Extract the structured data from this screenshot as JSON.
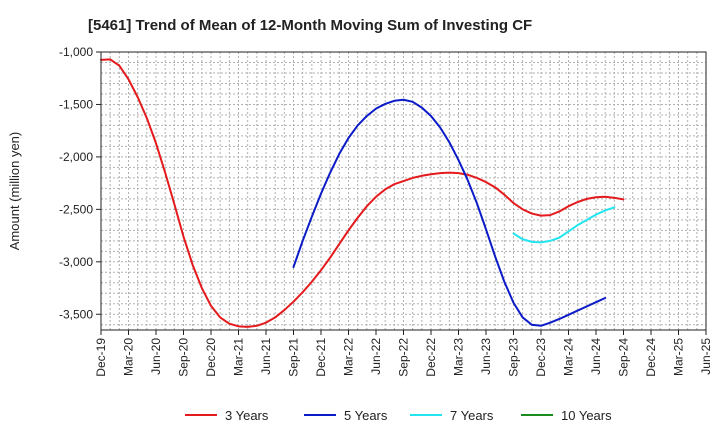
{
  "chart_data": {
    "type": "line",
    "title": "[5461]  Trend of Mean of 12-Month Moving Sum of Investing CF",
    "xlabel": "",
    "ylabel": "Amount (million yen)",
    "ylim": [
      -3650,
      -1000
    ],
    "yticks": [
      -1000,
      -1500,
      -2000,
      -2500,
      -3000,
      -3500
    ],
    "ytick_labels": [
      "-1,000",
      "-1,500",
      "-2,000",
      "-2,500",
      "-3,000",
      "-3,500"
    ],
    "xlim": [
      0,
      66
    ],
    "xticks": [
      0,
      3,
      6,
      9,
      12,
      15,
      18,
      21,
      24,
      27,
      30,
      33,
      36,
      39,
      42,
      45,
      48,
      51,
      54,
      57,
      60,
      63,
      66
    ],
    "xtick_labels": [
      "Dec-19",
      "Mar-20",
      "Jun-20",
      "Sep-20",
      "Dec-20",
      "Mar-21",
      "Jun-21",
      "Sep-21",
      "Dec-21",
      "Mar-22",
      "Jun-22",
      "Sep-22",
      "Dec-22",
      "Mar-23",
      "Jun-23",
      "Sep-23",
      "Dec-23",
      "Mar-24",
      "Jun-24",
      "Sep-24",
      "Dec-24",
      "Mar-25",
      "Jun-25"
    ],
    "grid": true,
    "legend": "bottom",
    "series": [
      {
        "name": "3 Years",
        "color": "#e41a1c",
        "points": [
          [
            0,
            -1075
          ],
          [
            1,
            -1070
          ],
          [
            2,
            -1130
          ],
          [
            3,
            -1260
          ],
          [
            4,
            -1430
          ],
          [
            5,
            -1630
          ],
          [
            6,
            -1870
          ],
          [
            7,
            -2150
          ],
          [
            8,
            -2450
          ],
          [
            9,
            -2760
          ],
          [
            10,
            -3030
          ],
          [
            11,
            -3250
          ],
          [
            12,
            -3420
          ],
          [
            13,
            -3530
          ],
          [
            14,
            -3590
          ],
          [
            15,
            -3615
          ],
          [
            16,
            -3620
          ],
          [
            17,
            -3610
          ],
          [
            18,
            -3580
          ],
          [
            19,
            -3530
          ],
          [
            20,
            -3460
          ],
          [
            21,
            -3380
          ],
          [
            22,
            -3290
          ],
          [
            23,
            -3190
          ],
          [
            24,
            -3080
          ],
          [
            25,
            -2960
          ],
          [
            26,
            -2830
          ],
          [
            27,
            -2700
          ],
          [
            28,
            -2580
          ],
          [
            29,
            -2470
          ],
          [
            30,
            -2380
          ],
          [
            31,
            -2310
          ],
          [
            32,
            -2260
          ],
          [
            33,
            -2230
          ],
          [
            34,
            -2200
          ],
          [
            35,
            -2180
          ],
          [
            36,
            -2165
          ],
          [
            37,
            -2155
          ],
          [
            38,
            -2150
          ],
          [
            39,
            -2155
          ],
          [
            40,
            -2170
          ],
          [
            41,
            -2200
          ],
          [
            42,
            -2240
          ],
          [
            43,
            -2290
          ],
          [
            44,
            -2360
          ],
          [
            45,
            -2440
          ],
          [
            46,
            -2500
          ],
          [
            47,
            -2540
          ],
          [
            48,
            -2560
          ],
          [
            49,
            -2555
          ],
          [
            50,
            -2520
          ],
          [
            51,
            -2470
          ],
          [
            52,
            -2430
          ],
          [
            53,
            -2400
          ],
          [
            54,
            -2385
          ],
          [
            55,
            -2380
          ],
          [
            56,
            -2390
          ],
          [
            57,
            -2405
          ]
        ]
      },
      {
        "name": "5 Years",
        "color": "#0c1bc8",
        "points": [
          [
            21,
            -3050
          ],
          [
            22,
            -2800
          ],
          [
            23,
            -2570
          ],
          [
            24,
            -2350
          ],
          [
            25,
            -2150
          ],
          [
            26,
            -1970
          ],
          [
            27,
            -1820
          ],
          [
            28,
            -1700
          ],
          [
            29,
            -1610
          ],
          [
            30,
            -1540
          ],
          [
            31,
            -1495
          ],
          [
            32,
            -1465
          ],
          [
            33,
            -1455
          ],
          [
            34,
            -1475
          ],
          [
            35,
            -1530
          ],
          [
            36,
            -1610
          ],
          [
            37,
            -1720
          ],
          [
            38,
            -1860
          ],
          [
            39,
            -2030
          ],
          [
            40,
            -2220
          ],
          [
            41,
            -2440
          ],
          [
            42,
            -2690
          ],
          [
            43,
            -2950
          ],
          [
            44,
            -3190
          ],
          [
            45,
            -3390
          ],
          [
            46,
            -3530
          ],
          [
            47,
            -3600
          ],
          [
            48,
            -3610
          ],
          [
            49,
            -3580
          ],
          [
            50,
            -3545
          ],
          [
            51,
            -3505
          ],
          [
            52,
            -3465
          ],
          [
            53,
            -3425
          ],
          [
            54,
            -3385
          ],
          [
            55,
            -3345
          ]
        ]
      },
      {
        "name": "7 Years",
        "color": "#22e5f0",
        "points": [
          [
            45,
            -2730
          ],
          [
            46,
            -2785
          ],
          [
            47,
            -2810
          ],
          [
            48,
            -2815
          ],
          [
            49,
            -2800
          ],
          [
            50,
            -2770
          ],
          [
            51,
            -2710
          ],
          [
            52,
            -2650
          ],
          [
            53,
            -2600
          ],
          [
            54,
            -2550
          ],
          [
            55,
            -2510
          ],
          [
            56,
            -2480
          ]
        ]
      },
      {
        "name": "10 Years",
        "color": "#1d8a1d",
        "points": []
      }
    ]
  }
}
